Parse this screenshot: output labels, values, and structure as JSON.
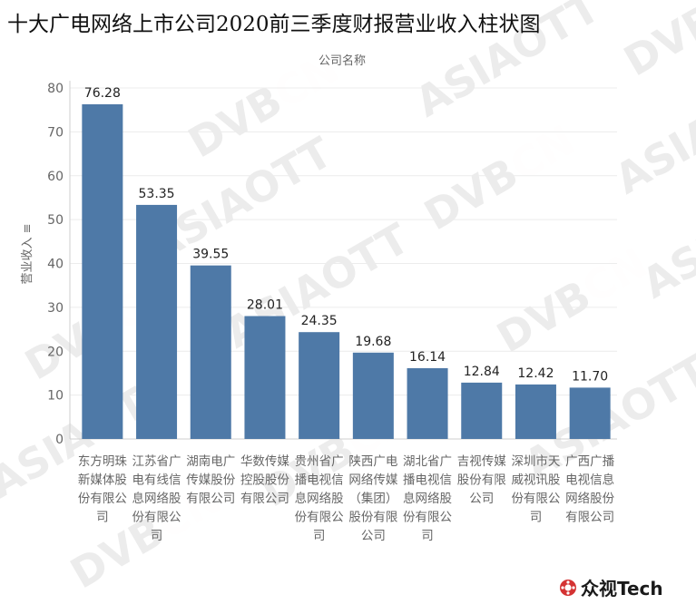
{
  "chart_data": {
    "type": "bar",
    "title": "十大广电网络上市公司2020前三季度财报营业收入柱状图",
    "xlabel": "公司名称",
    "ylabel": "营业收入 ≡",
    "ylim": [
      0,
      80
    ],
    "yticks": [
      0,
      10,
      20,
      30,
      40,
      50,
      60,
      70,
      80
    ],
    "categories": [
      "东方明珠新媒体股份有限公司",
      "江苏省广电有线信息网络股份有限公司",
      "湖南电广传媒股份有限公司",
      "华数传媒控股股份有限公司",
      "贵州省广播电视信息网络股份有限公司",
      "陕西广电网络传媒（集团）股份有限公司",
      "湖北省广播电视信息网络股份有限公司",
      "吉视传媒股份有限公司",
      "深圳市天威视讯股份有限公司",
      "广西广播电视信息网络股份有限公司"
    ],
    "values": [
      76.28,
      53.35,
      39.55,
      28.01,
      24.35,
      19.68,
      16.14,
      12.84,
      12.42,
      11.7
    ],
    "value_labels": [
      "76.28",
      "53.35",
      "39.55",
      "28.01",
      "24.35",
      "19.68",
      "16.14",
      "12.84",
      "12.42",
      "11.70"
    ],
    "bar_color": "#4e79a7",
    "grid": true
  },
  "watermarks": [
    "DVBCN",
    "ASIAOTT"
  ],
  "brand": {
    "logo_text": "众视Tech",
    "logo_icon": "gear-flower-icon",
    "logo_color": "#d43333"
  }
}
